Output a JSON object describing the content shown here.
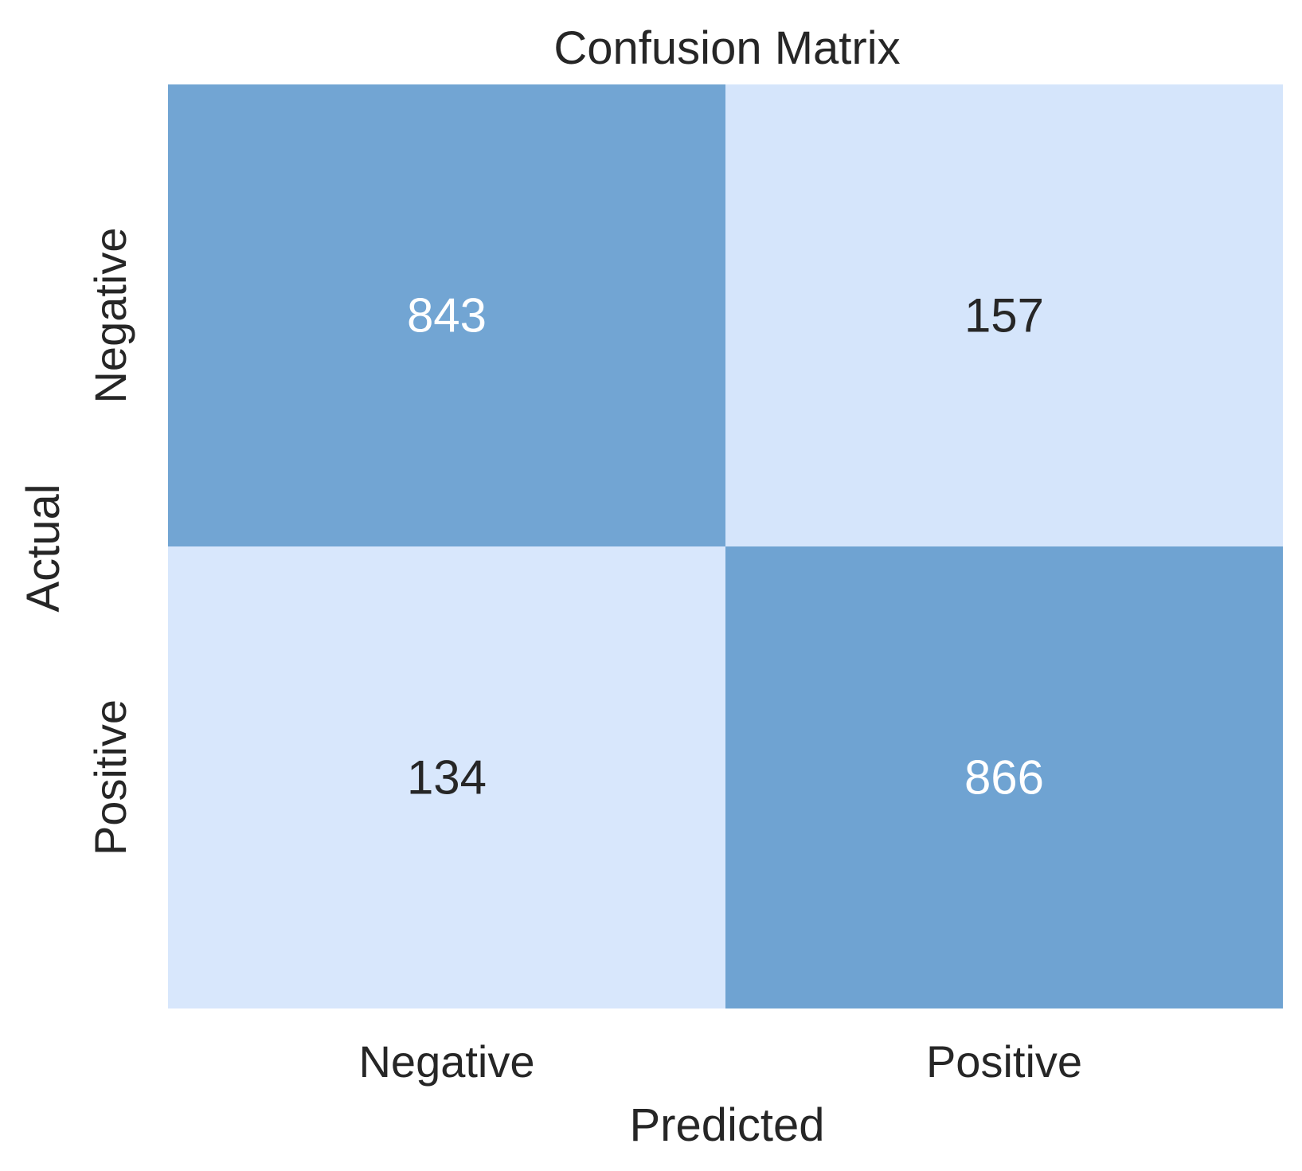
{
  "chart_data": {
    "type": "heatmap",
    "title": "Confusion Matrix",
    "xlabel": "Predicted",
    "ylabel": "Actual",
    "x_categories": [
      "Negative",
      "Positive"
    ],
    "y_categories": [
      "Negative",
      "Positive"
    ],
    "values": [
      [
        843,
        157
      ],
      [
        134,
        866
      ]
    ],
    "colors": {
      "low": "#d8e7fc",
      "high": "#6fa3d2",
      "text_dark": "#262626",
      "text_light": "#ffffff"
    },
    "grid": false,
    "legend": "none"
  }
}
